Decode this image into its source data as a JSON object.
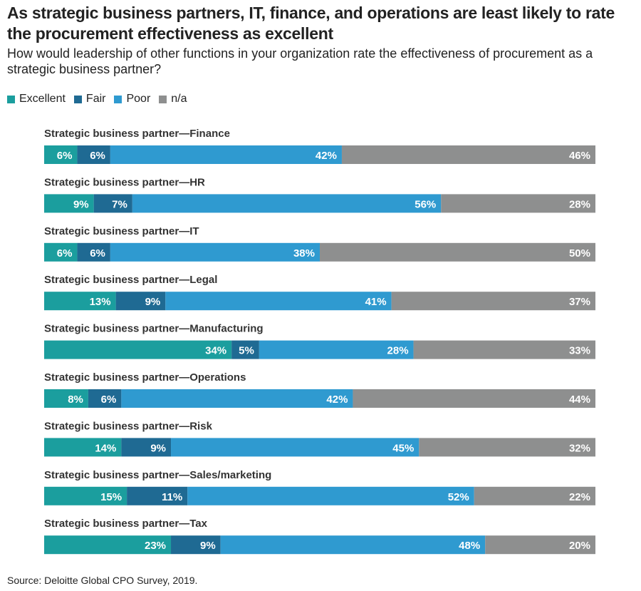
{
  "title": "As strategic business partners, IT, finance, and operations are least likely to rate the procurement effectiveness as excellent",
  "subtitle": "How would leadership of other functions in your organization rate the effectiveness of procurement as a strategic business partner?",
  "source": "Source: Deloitte Global CPO Survey, 2019.",
  "colors": {
    "excellent": "#1b9e9e",
    "fair": "#1f6a93",
    "poor": "#2f9ad0",
    "na": "#8e8f8f"
  },
  "legend": [
    {
      "label": "Excellent",
      "color": "#1b9e9e"
    },
    {
      "label": "Fair",
      "color": "#1f6a93"
    },
    {
      "label": "Poor",
      "color": "#2f9ad0"
    },
    {
      "label": "n/a",
      "color": "#8e8f8f"
    }
  ],
  "chart_data": {
    "type": "bar",
    "orientation": "horizontal",
    "stacked": true,
    "normalized_percent": true,
    "title": "As strategic business partners, IT, finance, and operations are least likely to rate the procurement effectiveness as excellent",
    "subtitle": "How would leadership of other functions in your organization rate the effectiveness of procurement as a strategic business partner?",
    "categories": [
      "Strategic business partner—Finance",
      "Strategic business partner—HR",
      "Strategic business partner—IT",
      "Strategic business partner—Legal",
      "Strategic business partner—Manufacturing",
      "Strategic business partner—Operations",
      "Strategic business partner—Risk",
      "Strategic business partner—Sales/marketing",
      "Strategic business partner—Tax"
    ],
    "series": [
      {
        "name": "Excellent",
        "values": [
          6,
          9,
          6,
          13,
          34,
          8,
          14,
          15,
          23
        ]
      },
      {
        "name": "Fair",
        "values": [
          6,
          7,
          6,
          9,
          5,
          6,
          9,
          11,
          9
        ]
      },
      {
        "name": "Poor",
        "values": [
          42,
          56,
          38,
          41,
          28,
          42,
          45,
          52,
          48
        ]
      },
      {
        "name": "n/a",
        "values": [
          46,
          28,
          50,
          37,
          33,
          44,
          32,
          22,
          20
        ]
      }
    ],
    "value_format": "percent",
    "legend_position": "top-left",
    "grid": false
  }
}
